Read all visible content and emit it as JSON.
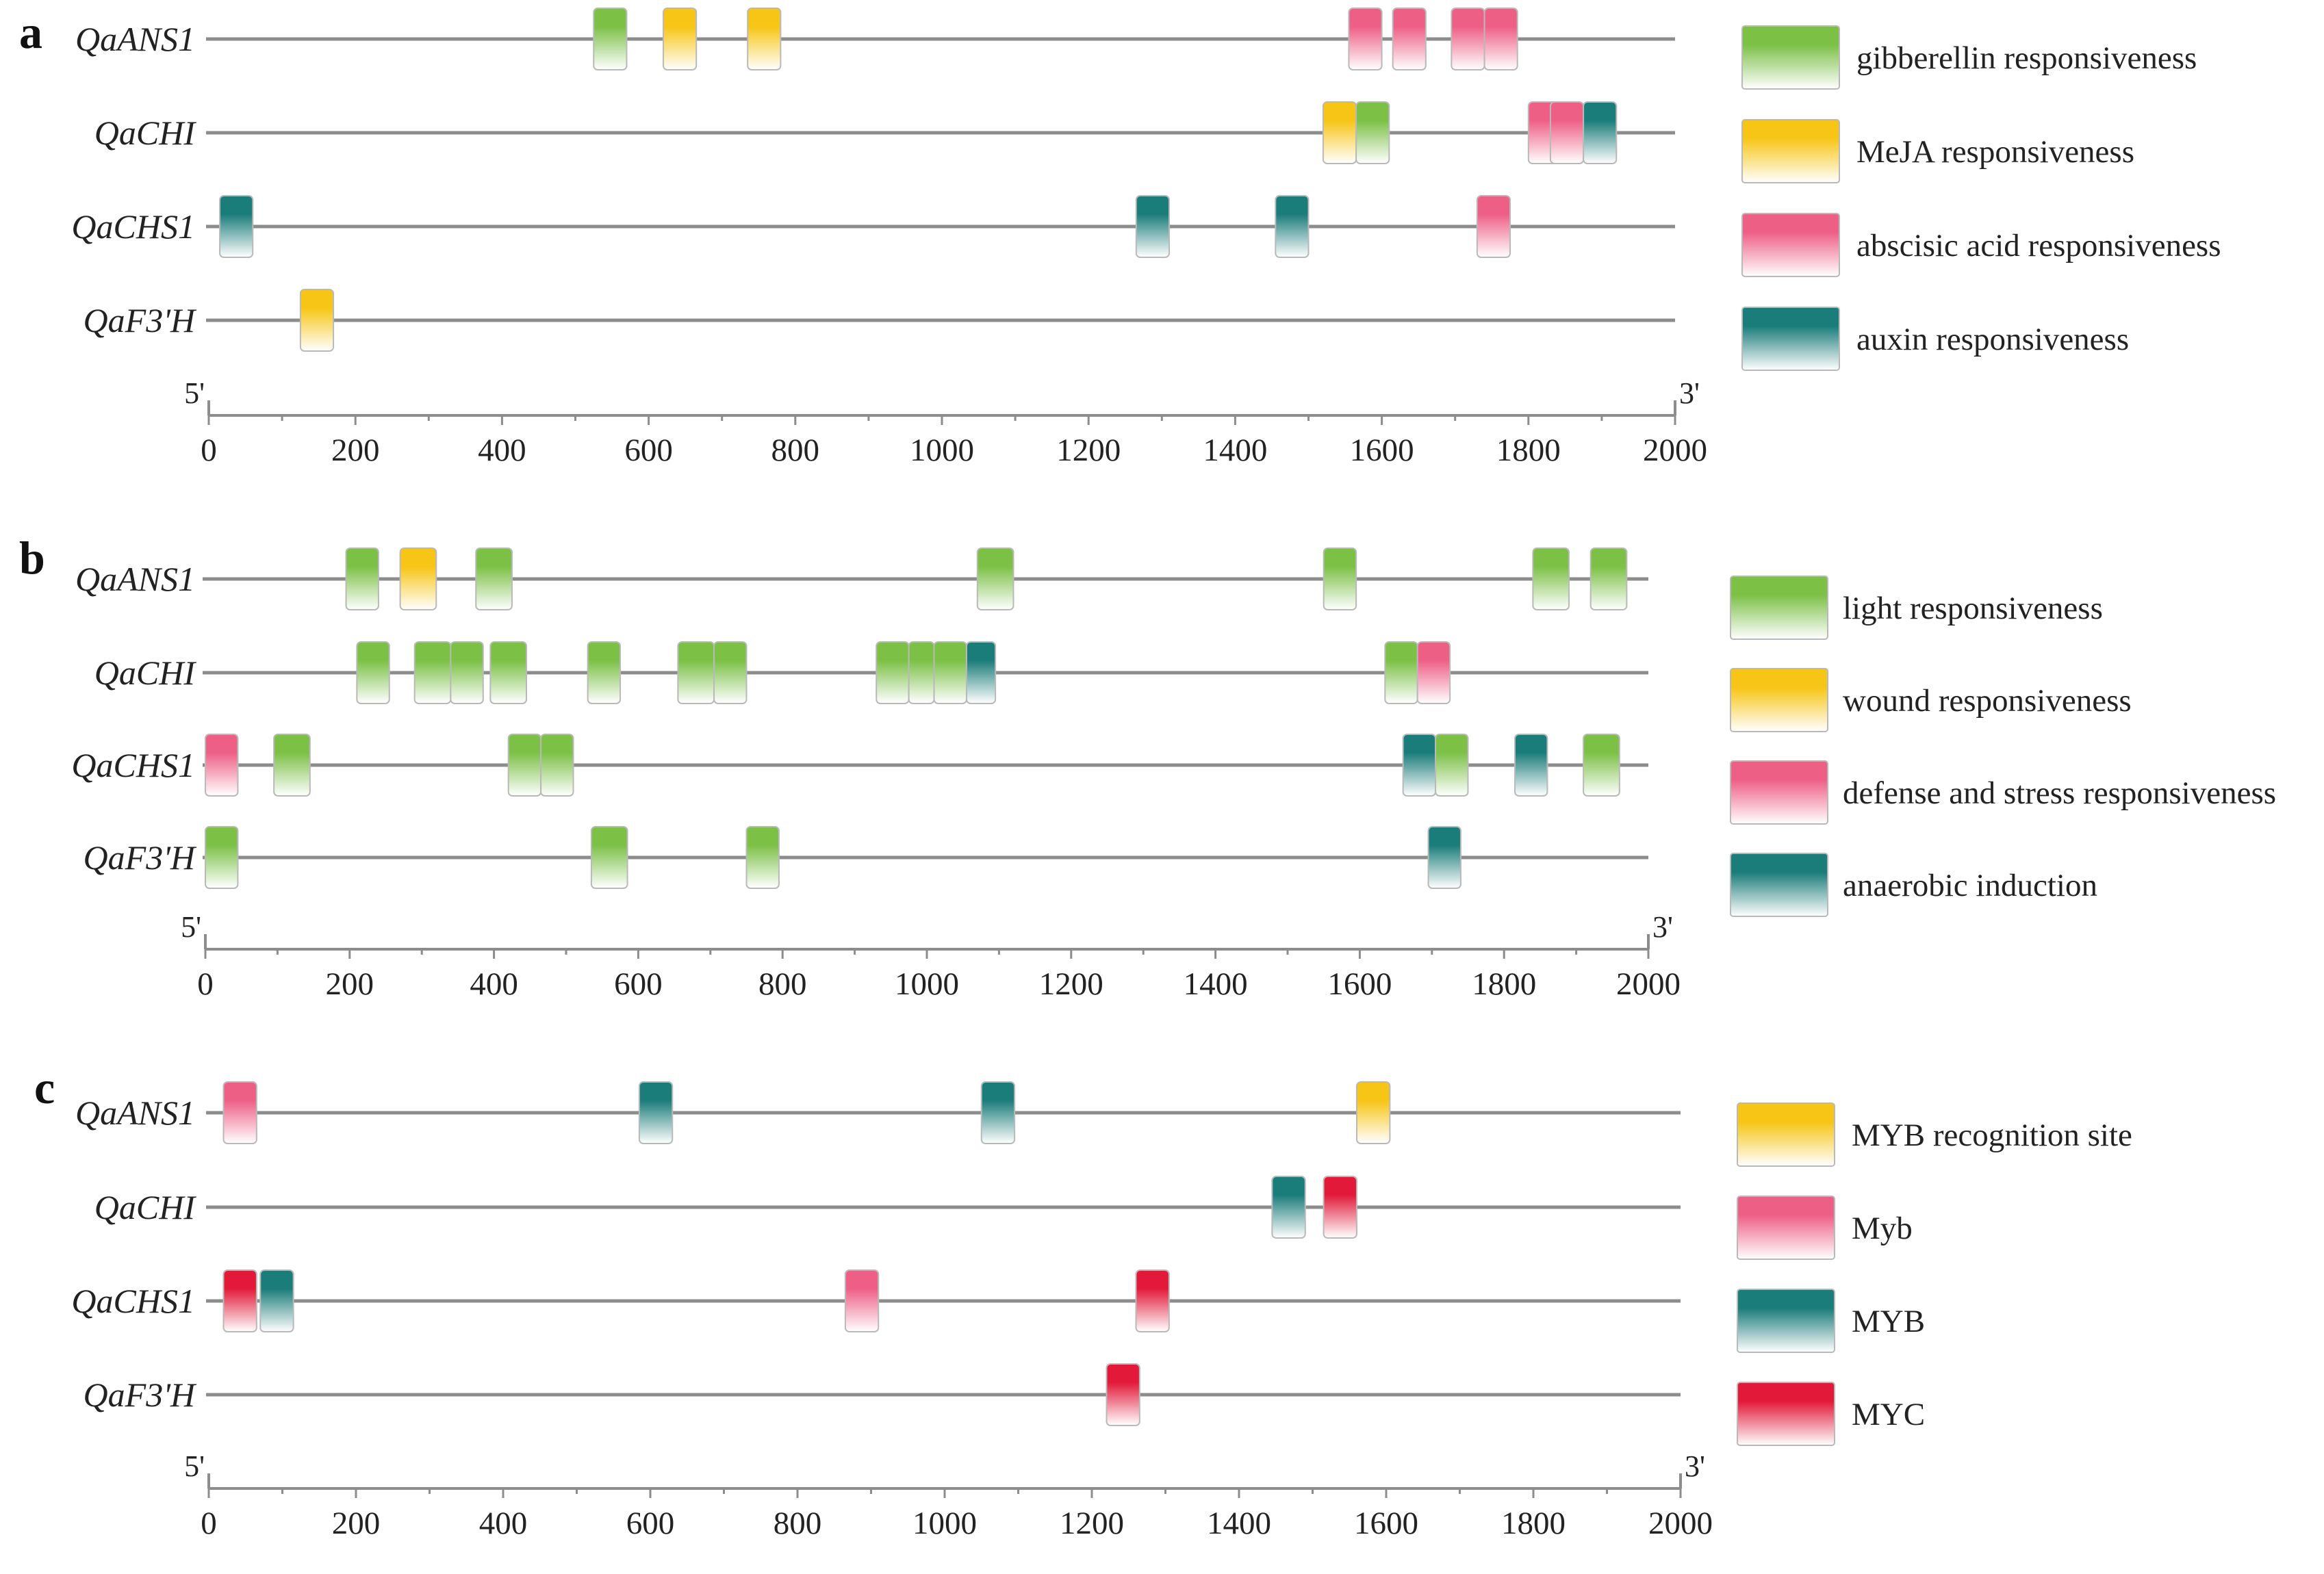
{
  "colors": {
    "green": "#7cc046",
    "yellow": "#f7c515",
    "pink": "#ee5f86",
    "teal": "#1a7d7a",
    "red": "#e3193a",
    "line": "#8c8c8c",
    "box_border": "#b9b9b9"
  },
  "chart_data": [
    {
      "type": "table",
      "panel_label": "a",
      "xlim": [
        0,
        2000
      ],
      "x_ticks": [
        "0",
        "200",
        "400",
        "600",
        "800",
        "1000",
        "1200",
        "1400",
        "1600",
        "1800",
        "2000"
      ],
      "end_labels": {
        "left": "5'",
        "right": "3'"
      },
      "genes": [
        "QaANS1",
        "QaCHI",
        "QaCHS1",
        "QaF3'H"
      ],
      "legend": [
        {
          "name": "gibberellin responsiveness",
          "color": "green"
        },
        {
          "name": "MeJA responsiveness",
          "color": "yellow"
        },
        {
          "name": "abscisic acid responsiveness",
          "color": "pink"
        },
        {
          "name": "auxin responsiveness",
          "color": "teal"
        }
      ],
      "elements": [
        {
          "gene": 0,
          "start": 525,
          "end": 570,
          "color": "green"
        },
        {
          "gene": 0,
          "start": 620,
          "end": 665,
          "color": "yellow"
        },
        {
          "gene": 0,
          "start": 735,
          "end": 780,
          "color": "yellow"
        },
        {
          "gene": 0,
          "start": 1555,
          "end": 1600,
          "color": "pink"
        },
        {
          "gene": 0,
          "start": 1615,
          "end": 1660,
          "color": "pink"
        },
        {
          "gene": 0,
          "start": 1695,
          "end": 1740,
          "color": "pink"
        },
        {
          "gene": 0,
          "start": 1740,
          "end": 1785,
          "color": "pink"
        },
        {
          "gene": 1,
          "start": 1520,
          "end": 1565,
          "color": "yellow"
        },
        {
          "gene": 1,
          "start": 1565,
          "end": 1610,
          "color": "green"
        },
        {
          "gene": 1,
          "start": 1800,
          "end": 1845,
          "color": "pink"
        },
        {
          "gene": 1,
          "start": 1830,
          "end": 1875,
          "color": "pink"
        },
        {
          "gene": 1,
          "start": 1875,
          "end": 1920,
          "color": "teal"
        },
        {
          "gene": 2,
          "start": 15,
          "end": 60,
          "color": "teal"
        },
        {
          "gene": 2,
          "start": 1265,
          "end": 1310,
          "color": "teal"
        },
        {
          "gene": 2,
          "start": 1455,
          "end": 1500,
          "color": "teal"
        },
        {
          "gene": 2,
          "start": 1730,
          "end": 1775,
          "color": "pink"
        },
        {
          "gene": 3,
          "start": 125,
          "end": 170,
          "color": "yellow"
        }
      ]
    },
    {
      "type": "table",
      "panel_label": "b",
      "xlim": [
        0,
        2000
      ],
      "x_ticks": [
        "0",
        "200",
        "400",
        "600",
        "800",
        "1000",
        "1200",
        "1400",
        "1600",
        "1800",
        "2000"
      ],
      "end_labels": {
        "left": "5'",
        "right": "3'"
      },
      "genes": [
        "QaANS1",
        "QaCHI",
        "QaCHS1",
        "QaF3'H"
      ],
      "legend": [
        {
          "name": "light  responsiveness",
          "color": "green"
        },
        {
          "name": "wound responsiveness",
          "color": "yellow"
        },
        {
          "name": "defense and stress  responsiveness",
          "color": "pink"
        },
        {
          "name": "anaerobic induction",
          "color": "teal"
        }
      ],
      "elements": [
        {
          "gene": 0,
          "start": 195,
          "end": 240,
          "color": "green"
        },
        {
          "gene": 0,
          "start": 270,
          "end": 320,
          "color": "yellow"
        },
        {
          "gene": 0,
          "start": 375,
          "end": 425,
          "color": "green"
        },
        {
          "gene": 0,
          "start": 1070,
          "end": 1120,
          "color": "green"
        },
        {
          "gene": 0,
          "start": 1550,
          "end": 1595,
          "color": "green"
        },
        {
          "gene": 0,
          "start": 1840,
          "end": 1890,
          "color": "green"
        },
        {
          "gene": 0,
          "start": 1920,
          "end": 1970,
          "color": "green"
        },
        {
          "gene": 1,
          "start": 210,
          "end": 255,
          "color": "green"
        },
        {
          "gene": 1,
          "start": 290,
          "end": 340,
          "color": "green"
        },
        {
          "gene": 1,
          "start": 340,
          "end": 385,
          "color": "green"
        },
        {
          "gene": 1,
          "start": 395,
          "end": 445,
          "color": "green"
        },
        {
          "gene": 1,
          "start": 530,
          "end": 575,
          "color": "green"
        },
        {
          "gene": 1,
          "start": 655,
          "end": 705,
          "color": "green"
        },
        {
          "gene": 1,
          "start": 705,
          "end": 750,
          "color": "green"
        },
        {
          "gene": 1,
          "start": 930,
          "end": 975,
          "color": "green"
        },
        {
          "gene": 1,
          "start": 975,
          "end": 1010,
          "color": "green"
        },
        {
          "gene": 1,
          "start": 1010,
          "end": 1055,
          "color": "green"
        },
        {
          "gene": 1,
          "start": 1055,
          "end": 1095,
          "color": "teal"
        },
        {
          "gene": 1,
          "start": 1635,
          "end": 1680,
          "color": "green"
        },
        {
          "gene": 1,
          "start": 1680,
          "end": 1725,
          "color": "pink"
        },
        {
          "gene": 2,
          "start": 0,
          "end": 45,
          "color": "pink"
        },
        {
          "gene": 2,
          "start": 95,
          "end": 145,
          "color": "green"
        },
        {
          "gene": 2,
          "start": 420,
          "end": 465,
          "color": "green"
        },
        {
          "gene": 2,
          "start": 465,
          "end": 510,
          "color": "green"
        },
        {
          "gene": 2,
          "start": 1660,
          "end": 1705,
          "color": "teal"
        },
        {
          "gene": 2,
          "start": 1705,
          "end": 1750,
          "color": "green"
        },
        {
          "gene": 2,
          "start": 1815,
          "end": 1860,
          "color": "teal"
        },
        {
          "gene": 2,
          "start": 1910,
          "end": 1960,
          "color": "green"
        },
        {
          "gene": 3,
          "start": 0,
          "end": 45,
          "color": "green"
        },
        {
          "gene": 3,
          "start": 535,
          "end": 585,
          "color": "green"
        },
        {
          "gene": 3,
          "start": 750,
          "end": 795,
          "color": "green"
        },
        {
          "gene": 3,
          "start": 1695,
          "end": 1740,
          "color": "teal"
        }
      ]
    },
    {
      "type": "table",
      "panel_label": "c",
      "xlim": [
        0,
        2000
      ],
      "x_ticks": [
        "0",
        "200",
        "400",
        "600",
        "800",
        "1000",
        "1200",
        "1400",
        "1600",
        "1800",
        "2000"
      ],
      "end_labels": {
        "left": "5'",
        "right": "3'"
      },
      "genes": [
        "QaANS1",
        "QaCHI",
        "QaCHS1",
        "QaF3'H"
      ],
      "legend": [
        {
          "name": "MYB recognition site",
          "color": "yellow"
        },
        {
          "name": "Myb",
          "color": "pink"
        },
        {
          "name": "MYB",
          "color": "teal"
        },
        {
          "name": "MYC",
          "color": "red"
        }
      ],
      "elements": [
        {
          "gene": 0,
          "start": 20,
          "end": 65,
          "color": "pink"
        },
        {
          "gene": 0,
          "start": 585,
          "end": 630,
          "color": "teal"
        },
        {
          "gene": 0,
          "start": 1050,
          "end": 1095,
          "color": "teal"
        },
        {
          "gene": 0,
          "start": 1560,
          "end": 1605,
          "color": "yellow"
        },
        {
          "gene": 1,
          "start": 1445,
          "end": 1490,
          "color": "teal"
        },
        {
          "gene": 1,
          "start": 1515,
          "end": 1560,
          "color": "red"
        },
        {
          "gene": 2,
          "start": 20,
          "end": 65,
          "color": "red"
        },
        {
          "gene": 2,
          "start": 70,
          "end": 115,
          "color": "teal"
        },
        {
          "gene": 2,
          "start": 865,
          "end": 910,
          "color": "pink"
        },
        {
          "gene": 2,
          "start": 1260,
          "end": 1305,
          "color": "red"
        },
        {
          "gene": 3,
          "start": 1220,
          "end": 1265,
          "color": "red"
        }
      ]
    }
  ]
}
